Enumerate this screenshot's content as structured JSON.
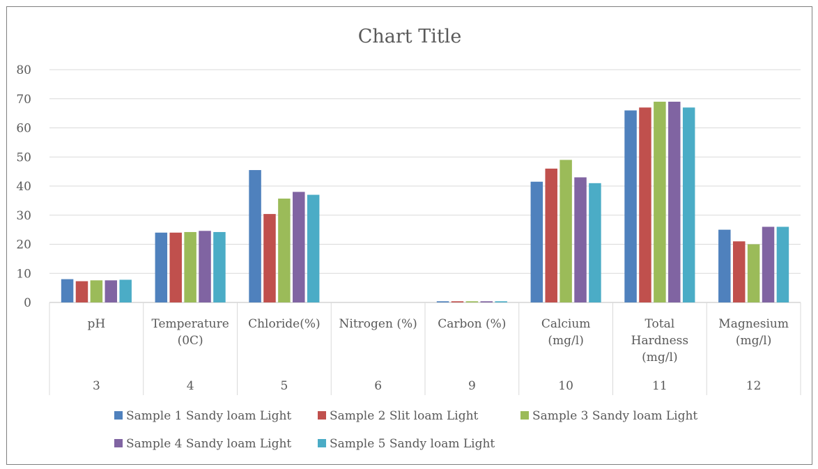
{
  "chart_data": {
    "type": "bar",
    "title": "Chart Title",
    "xlabel": "",
    "ylabel": "",
    "ylim": [
      0,
      80
    ],
    "yticks": [
      "0",
      "10",
      "20",
      "30",
      "40",
      "50",
      "60",
      "70",
      "80"
    ],
    "grid": true,
    "legend_position": "bottom",
    "categories": [
      {
        "label_lines": [
          "pH"
        ],
        "number": "3"
      },
      {
        "label_lines": [
          "Temperature",
          "(0C)"
        ],
        "number": "4"
      },
      {
        "label_lines": [
          "Chloride(%)"
        ],
        "number": "5"
      },
      {
        "label_lines": [
          "Nitrogen (%)"
        ],
        "number": "6"
      },
      {
        "label_lines": [
          "Carbon (%)"
        ],
        "number": "9"
      },
      {
        "label_lines": [
          "Calcium",
          "(mg/l)"
        ],
        "number": "10"
      },
      {
        "label_lines": [
          "Total",
          "Hardness",
          "(mg/l)"
        ],
        "number": "11"
      },
      {
        "label_lines": [
          "Magnesium",
          "(mg/l)"
        ],
        "number": "12"
      }
    ],
    "series": [
      {
        "name": "Sample 1 Sandy loam  Light",
        "color": "#4f81bd",
        "values": [
          8.0,
          24.0,
          45.5,
          0.0,
          0.4,
          41.5,
          66.0,
          25.0
        ]
      },
      {
        "name": "Sample 2 Slit loam Light",
        "color": "#c0504d",
        "values": [
          7.3,
          24.0,
          30.4,
          0.0,
          0.4,
          46.0,
          67.0,
          21.0
        ]
      },
      {
        "name": "Sample  3 Sandy loam Light",
        "color": "#9bbb59",
        "values": [
          7.6,
          24.2,
          35.7,
          0.0,
          0.4,
          49.0,
          69.0,
          20.0
        ]
      },
      {
        "name": "Sample  4 Sandy loam Light",
        "color": "#8064a2",
        "values": [
          7.6,
          24.6,
          38.0,
          0.0,
          0.4,
          43.0,
          69.0,
          26.0
        ]
      },
      {
        "name": "Sample 5 Sandy loam Light",
        "color": "#4bacc6",
        "values": [
          7.8,
          24.2,
          37.0,
          0.0,
          0.4,
          41.0,
          67.0,
          26.0
        ]
      }
    ]
  }
}
